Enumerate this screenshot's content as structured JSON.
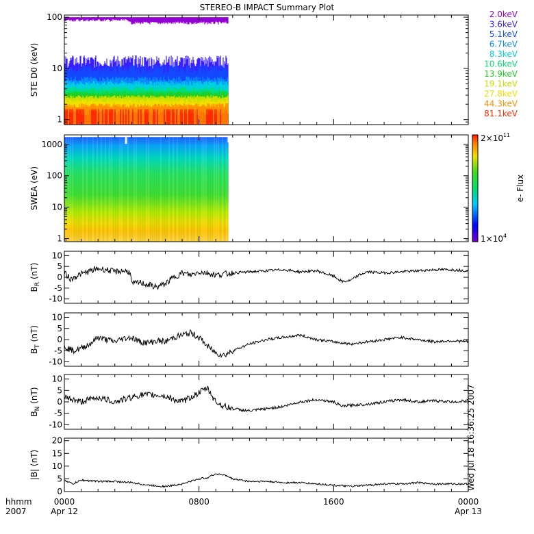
{
  "title": "STEREO-B IMPACT Summary Plot",
  "chart_data": [
    {
      "type": "line",
      "name": "ste",
      "ylabel": "STE D0 (keV)",
      "yscale": "log",
      "ylim": [
        0.8,
        110
      ],
      "yticks": [
        1,
        10,
        100
      ],
      "ytick_labels": [
        "1",
        "10",
        "100"
      ],
      "data_end_hour": 9.75,
      "legend_title": "",
      "series": [
        {
          "name": "2.0keV",
          "color": "#9400d3",
          "level_lo": 60,
          "level_hi": 100
        },
        {
          "name": "3.6keV",
          "color": "#3a1eff",
          "level_lo": 10,
          "level_hi": 18
        },
        {
          "name": "5.1keV",
          "color": "#1448ff",
          "level_lo": 8,
          "level_hi": 12
        },
        {
          "name": "6.7keV",
          "color": "#0a8cff",
          "level_lo": 5.5,
          "level_hi": 7
        },
        {
          "name": "8.3keV",
          "color": "#00cfe0",
          "level_lo": 4.6,
          "level_hi": 5.8
        },
        {
          "name": "10.6keV",
          "color": "#00e070",
          "level_lo": 3.5,
          "level_hi": 4.4
        },
        {
          "name": "13.9keV",
          "color": "#22cc22",
          "level_lo": 3.0,
          "level_hi": 3.6
        },
        {
          "name": "19.1keV",
          "color": "#c8e000",
          "level_lo": 2.6,
          "level_hi": 3.0
        },
        {
          "name": "27.8keV",
          "color": "#f0e000",
          "level_lo": 2.1,
          "level_hi": 2.6
        },
        {
          "name": "44.3keV",
          "color": "#ff9000",
          "level_lo": 1.7,
          "level_hi": 2.1
        },
        {
          "name": "81.1keV",
          "color": "#ff2a00",
          "level_lo": 1.2,
          "level_hi": 1.6
        }
      ]
    },
    {
      "type": "heatmap",
      "name": "swea",
      "ylabel": "SWEA (eV)",
      "yscale": "log",
      "ylim": [
        0.8,
        2000
      ],
      "yticks": [
        1,
        10,
        100,
        1000
      ],
      "ytick_labels": [
        "1",
        "10",
        "100",
        "1000"
      ],
      "data_end_hour": 9.75,
      "colorbar_label": "e- Flux",
      "colorbar_max": "2×10",
      "colorbar_max_exp": "11",
      "colorbar_min": "1×10",
      "colorbar_min_exp": "4"
    },
    {
      "type": "line",
      "name": "br",
      "ylabel": "B",
      "ylabel_sub": "R",
      "ylabel_unit": "(nT)",
      "ylim": [
        -12,
        12
      ],
      "yticks": [
        -10,
        -5,
        0,
        5,
        10
      ],
      "ytick_labels": [
        "-10",
        "-5",
        "0",
        "5",
        "10"
      ],
      "x": [
        0,
        0.4,
        0.8,
        1.2,
        1.6,
        2.0,
        2.5,
        3.0,
        3.5,
        3.9,
        4.0,
        4.5,
        5.0,
        5.5,
        6.0,
        6.5,
        7.0,
        7.5,
        8.0,
        8.5,
        9.0,
        9.5,
        10,
        11,
        12,
        13,
        14,
        15,
        16,
        16.5,
        17,
        17.5,
        18,
        19,
        20,
        21,
        22,
        23,
        24
      ],
      "values": [
        2,
        -1,
        1,
        2,
        3,
        4,
        3.5,
        2.5,
        3,
        2.5,
        -3,
        -2.5,
        -3.5,
        -4.5,
        -3,
        0,
        2,
        1,
        2.5,
        2,
        1,
        1.5,
        2,
        2.5,
        3,
        3.5,
        2.5,
        3,
        0.5,
        -2,
        -1.5,
        1,
        2.5,
        2,
        2.5,
        3,
        3.5,
        3.5,
        3
      ]
    },
    {
      "type": "line",
      "name": "bt",
      "ylabel": "B",
      "ylabel_sub": "T",
      "ylabel_unit": "(nT)",
      "ylim": [
        -12,
        12
      ],
      "yticks": [
        -10,
        -5,
        0,
        5,
        10
      ],
      "ytick_labels": [
        "-10",
        "-5",
        "0",
        "5",
        "10"
      ],
      "x": [
        0,
        0.5,
        1.0,
        1.5,
        2.0,
        2.5,
        3.0,
        3.5,
        4.0,
        4.5,
        5.0,
        5.5,
        6.0,
        6.5,
        7.0,
        7.5,
        8.0,
        8.5,
        9.0,
        9.5,
        10,
        11,
        12,
        13,
        14,
        15,
        16,
        17,
        18,
        19,
        20,
        21,
        22,
        23,
        24
      ],
      "values": [
        -3,
        -5,
        -4,
        -2,
        1,
        0,
        -1,
        0.5,
        1,
        -1,
        -1.5,
        -0.5,
        -1,
        1,
        2,
        3,
        1,
        -3,
        -6,
        -7,
        -5,
        -2,
        0,
        1,
        2,
        0,
        -1,
        -2,
        -1,
        0,
        1,
        0,
        -1,
        -0.5,
        -1
      ]
    },
    {
      "type": "line",
      "name": "bn",
      "ylabel": "B",
      "ylabel_sub": "N",
      "ylabel_unit": "(nT)",
      "ylim": [
        -12,
        12
      ],
      "yticks": [
        -10,
        -5,
        0,
        5,
        10
      ],
      "ytick_labels": [
        "-10",
        "-5",
        "0",
        "5",
        "10"
      ],
      "x": [
        0,
        0.5,
        1.0,
        1.5,
        2.0,
        2.5,
        3.0,
        3.5,
        4.0,
        4.5,
        5.0,
        5.5,
        6.0,
        6.5,
        7.0,
        7.5,
        8.0,
        8.5,
        9.0,
        9.5,
        10,
        11,
        12,
        13,
        14,
        15,
        16,
        16.5,
        17,
        18,
        19,
        20,
        21,
        22,
        23,
        24
      ],
      "values": [
        2,
        1,
        0,
        1,
        2,
        1,
        0,
        1,
        2,
        3,
        3,
        3,
        2.5,
        1,
        0,
        2,
        4,
        6,
        0,
        -2,
        -3,
        -4,
        -3,
        -2,
        0,
        1,
        0,
        -2,
        -1.5,
        -1,
        0,
        1,
        0,
        0.5,
        0,
        0.5
      ]
    },
    {
      "type": "line",
      "name": "bmag",
      "ylabel": "|B| (nT)",
      "ylim": [
        0,
        21
      ],
      "yticks": [
        0,
        5,
        10,
        15,
        20
      ],
      "ytick_labels": [
        "0",
        "5",
        "10",
        "15",
        "20"
      ],
      "x": [
        0,
        0.5,
        1,
        2,
        3,
        4,
        5,
        6,
        7,
        8,
        8.5,
        9,
        9.5,
        10,
        11,
        12,
        13,
        14,
        15,
        16,
        17,
        18,
        19,
        20,
        21,
        22,
        23,
        24
      ],
      "values": [
        4.5,
        3,
        4.5,
        4,
        4,
        3.5,
        2.5,
        2,
        3,
        5,
        5.5,
        7,
        6.5,
        5,
        4,
        4,
        3.5,
        3.5,
        3,
        2.5,
        2,
        2.5,
        3,
        3,
        3.5,
        3,
        3,
        3
      ]
    }
  ],
  "xaxis": {
    "xlim": [
      0,
      24
    ],
    "major_ticks": [
      0,
      8,
      16,
      24
    ],
    "tick_labels": [
      "0000",
      "0800",
      "1600",
      "0000"
    ],
    "date_labels": [
      "Apr 12",
      "",
      "",
      "Apr 13"
    ],
    "row1_title": "hhmm",
    "row2_title": "2007"
  },
  "timestamp": "Wed Jul 18 16:36:25 2007"
}
